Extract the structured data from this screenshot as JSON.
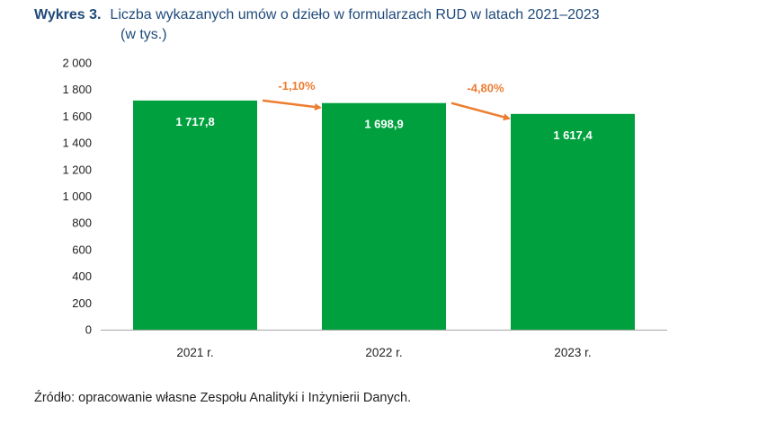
{
  "title": {
    "label": "Wykres 3.",
    "text": "Liczba wykazanych umów o dzieło w formularzach RUD w latach 2021–2023",
    "text2": "(w tys.)"
  },
  "chart_data": {
    "type": "bar",
    "categories": [
      "2021 r.",
      "2022 r.",
      "2023 r."
    ],
    "values": [
      1717.8,
      1698.9,
      1617.4
    ],
    "value_labels": [
      "1 717,8",
      "1 698,9",
      "1 617,4"
    ],
    "y_ticks": [
      0,
      200,
      400,
      600,
      800,
      1000,
      1200,
      1400,
      1600,
      1800,
      2000
    ],
    "y_tick_labels": [
      "0",
      "200",
      "400",
      "600",
      "800",
      "1 000",
      "1 200",
      "1 400",
      "1 600",
      "1 800",
      "2 000"
    ],
    "ylim": [
      0,
      2000
    ],
    "grid": false,
    "changes": [
      {
        "from": "2021 r.",
        "to": "2022 r.",
        "label": "-1,10%"
      },
      {
        "from": "2022 r.",
        "to": "2023 r.",
        "label": "-4,80%"
      }
    ],
    "colors": {
      "bar": "#00a03e",
      "arrow": "#ed7d31",
      "axis": "#a6a6a6"
    }
  },
  "source": "Źródło: opracowanie własne Zespołu Analityki i Inżynierii Danych."
}
